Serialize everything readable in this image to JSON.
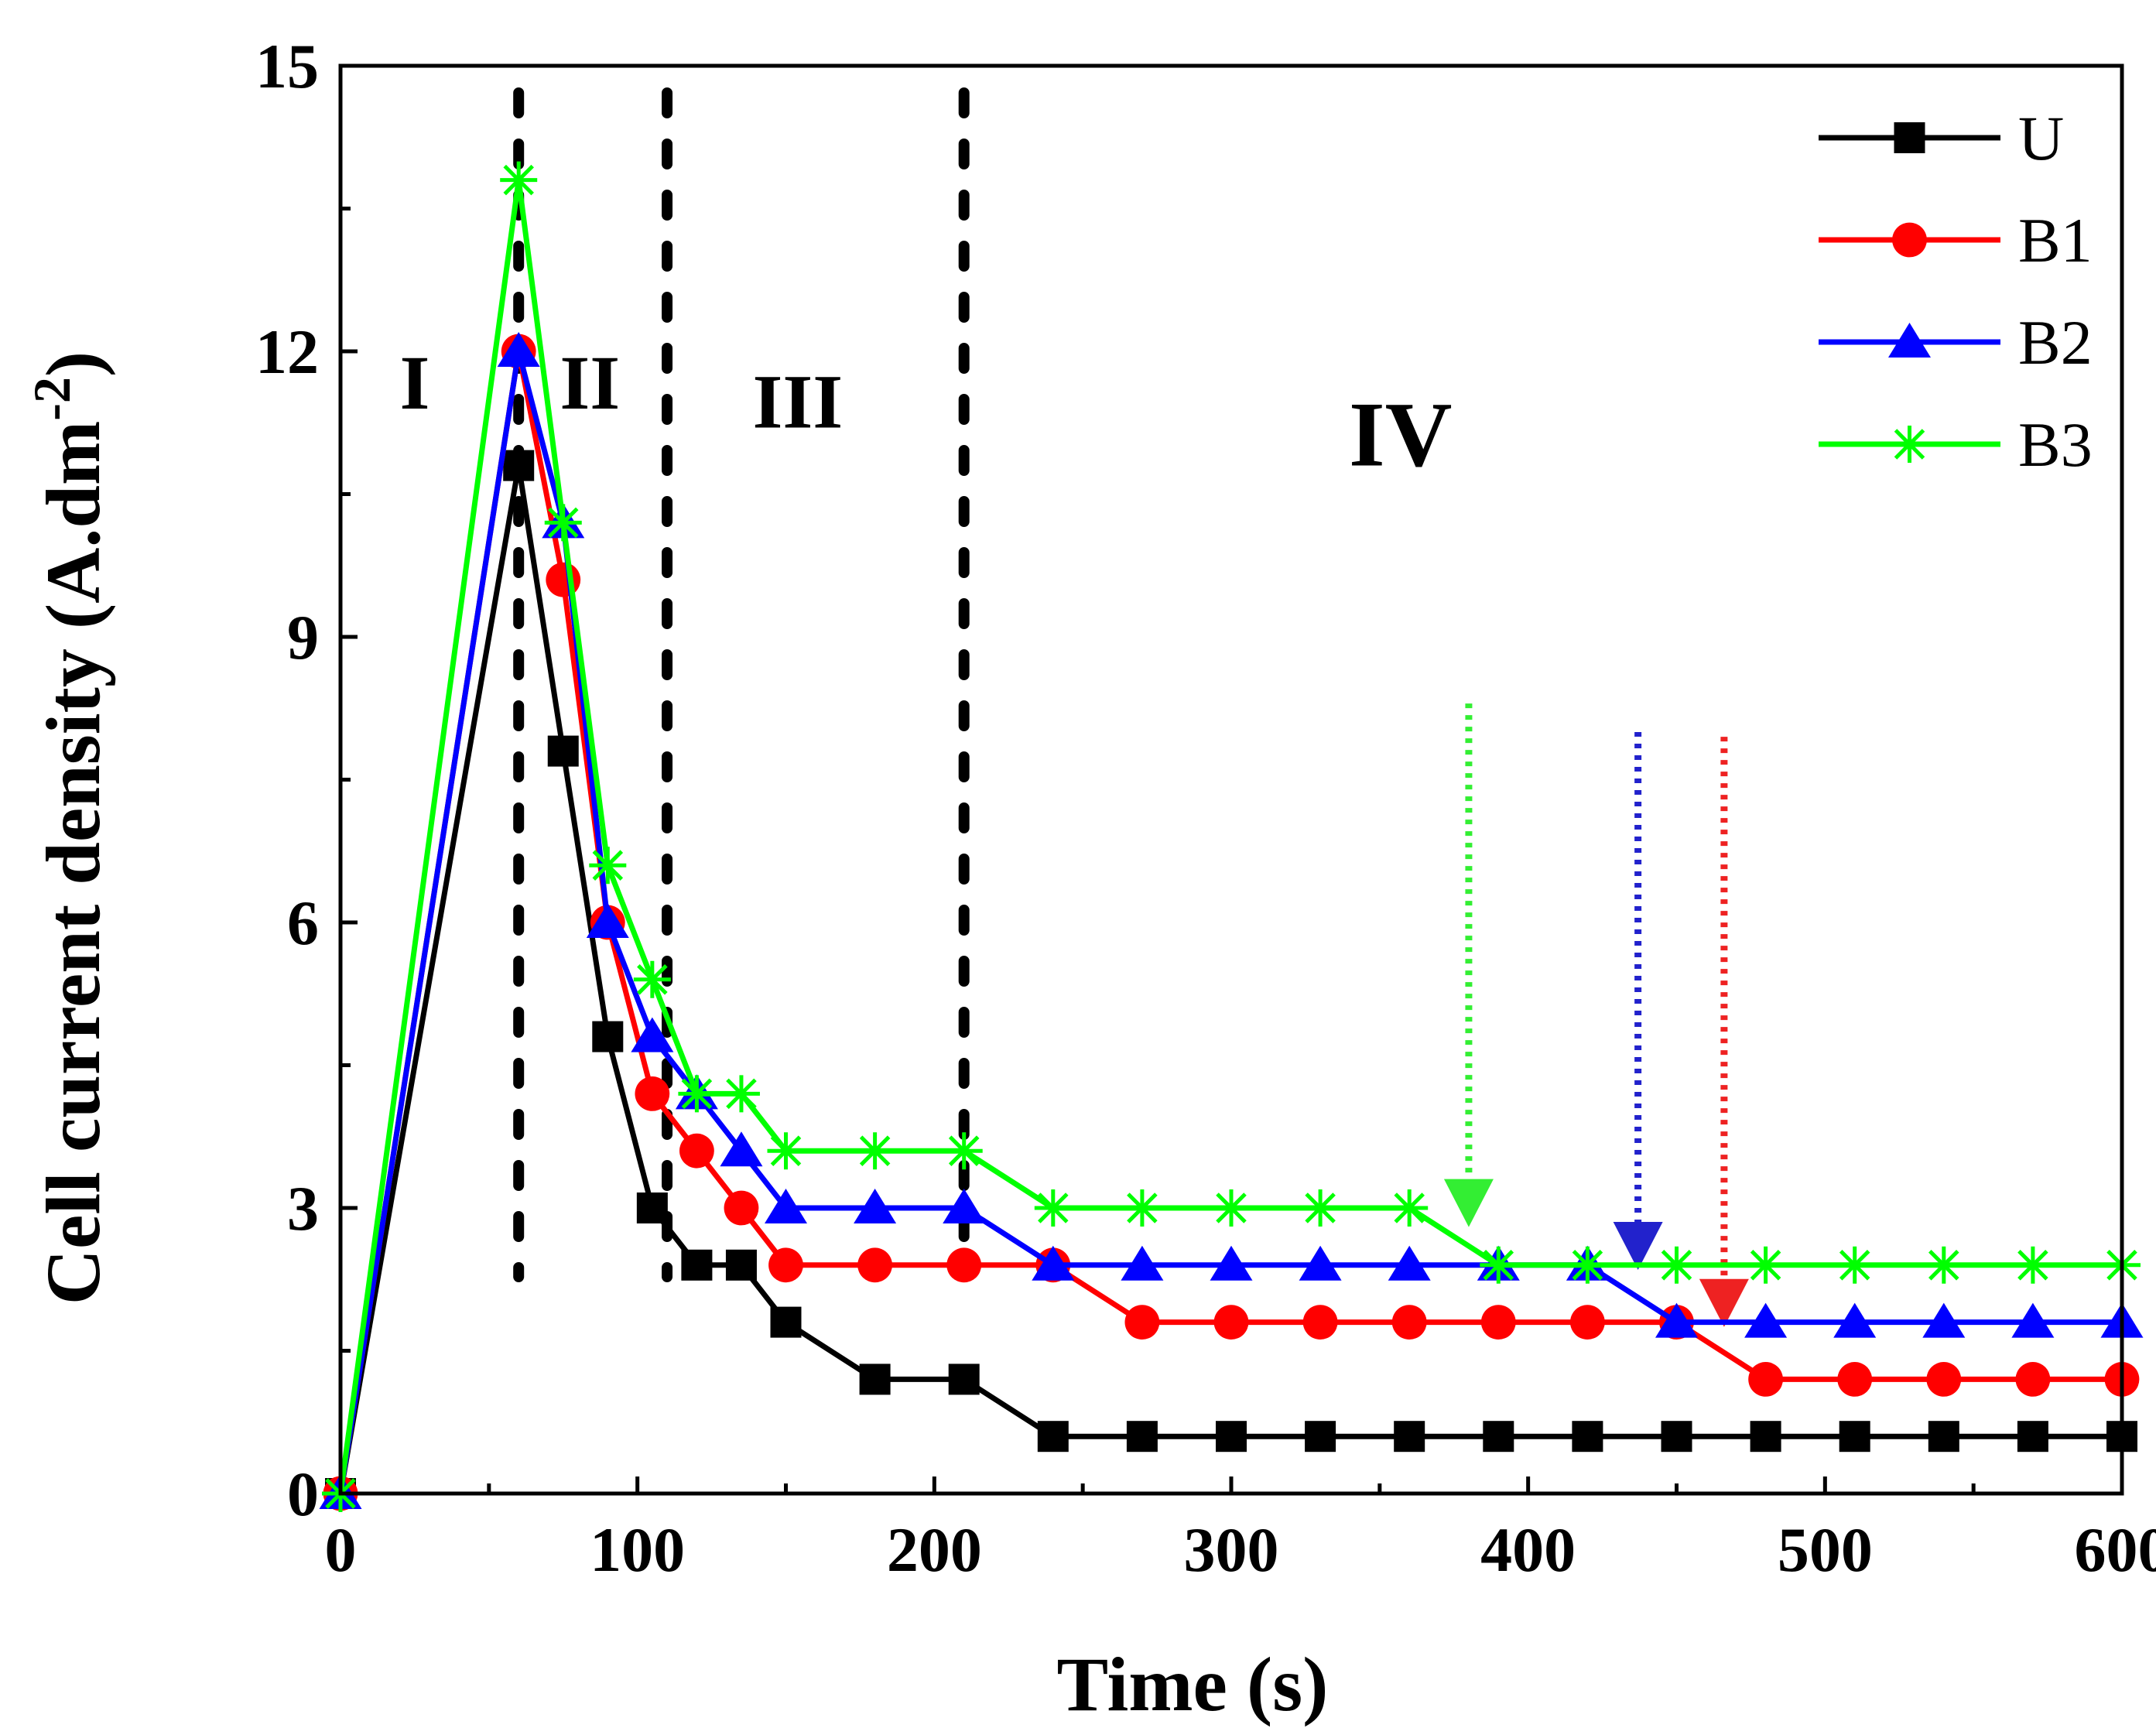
{
  "chart_data": {
    "type": "line",
    "title": "",
    "xlabel": "Time (s)",
    "ylabel_main": "Cell current density (A.dm",
    "ylabel_sup": "-2",
    "ylabel_close": ")",
    "xlim": [
      0,
      600
    ],
    "ylim": [
      0,
      15
    ],
    "xticks": [
      0,
      100,
      200,
      300,
      400,
      500,
      600
    ],
    "xtick_labels": [
      "0",
      "100",
      "200",
      "300",
      "400",
      "500",
      "600"
    ],
    "yticks": [
      0,
      3,
      6,
      9,
      12,
      15
    ],
    "ytick_labels": [
      "0",
      "3",
      "6",
      "9",
      "12",
      "15"
    ],
    "grid": false,
    "legend_position": "top-right",
    "series": [
      {
        "name": "U",
        "color": "#000000",
        "marker": "square",
        "x": [
          0,
          60,
          75,
          90,
          105,
          120,
          135,
          150,
          180,
          210,
          240,
          270,
          300,
          330,
          360,
          390,
          420,
          450,
          480,
          510,
          540,
          570,
          600
        ],
        "y": [
          0,
          10.8,
          7.8,
          4.8,
          3.0,
          2.4,
          2.4,
          1.8,
          1.2,
          1.2,
          0.6,
          0.6,
          0.6,
          0.6,
          0.6,
          0.6,
          0.6,
          0.6,
          0.6,
          0.6,
          0.6,
          0.6,
          0.6
        ]
      },
      {
        "name": "B1",
        "color": "#ff0000",
        "marker": "circle",
        "x": [
          0,
          60,
          75,
          90,
          105,
          120,
          135,
          150,
          180,
          210,
          240,
          270,
          300,
          330,
          360,
          390,
          420,
          450,
          480,
          510,
          540,
          570,
          600
        ],
        "y": [
          0,
          12.0,
          9.6,
          6.0,
          4.2,
          3.6,
          3.0,
          2.4,
          2.4,
          2.4,
          2.4,
          1.8,
          1.8,
          1.8,
          1.8,
          1.8,
          1.8,
          1.8,
          1.2,
          1.2,
          1.2,
          1.2,
          1.2
        ]
      },
      {
        "name": "B2",
        "color": "#0000ff",
        "marker": "triangle",
        "x": [
          0,
          60,
          75,
          90,
          105,
          120,
          135,
          150,
          180,
          210,
          240,
          270,
          300,
          330,
          360,
          390,
          420,
          450,
          480,
          510,
          540,
          570,
          600
        ],
        "y": [
          0,
          12.0,
          10.2,
          6.0,
          4.8,
          4.2,
          3.6,
          3.0,
          3.0,
          3.0,
          2.4,
          2.4,
          2.4,
          2.4,
          2.4,
          2.4,
          2.4,
          1.8,
          1.8,
          1.8,
          1.8,
          1.8,
          1.8
        ]
      },
      {
        "name": "B3",
        "color": "#00ff00",
        "marker": "asterisk",
        "x": [
          0,
          60,
          75,
          90,
          105,
          120,
          135,
          150,
          180,
          210,
          240,
          270,
          300,
          330,
          360,
          390,
          420,
          450,
          480,
          510,
          540,
          570,
          600
        ],
        "y": [
          0,
          13.8,
          10.2,
          6.6,
          5.4,
          4.2,
          4.2,
          3.6,
          3.6,
          3.6,
          3.0,
          3.0,
          3.0,
          3.0,
          3.0,
          2.4,
          2.4,
          2.4,
          2.4,
          2.4,
          2.4,
          2.4,
          2.4
        ]
      }
    ],
    "region_boundaries_x": [
      60,
      110,
      210
    ],
    "regions": [
      {
        "label": "I",
        "x": 25,
        "y": 11.4,
        "size": "medium"
      },
      {
        "label": "II",
        "x": 84,
        "y": 11.4,
        "size": "medium"
      },
      {
        "label": "III",
        "x": 154,
        "y": 11.2,
        "size": "medium"
      },
      {
        "label": "IV",
        "x": 357,
        "y": 10.8,
        "size": "large"
      }
    ],
    "annotations": [
      {
        "type": "arrow",
        "color": "#33ee33",
        "x": 380,
        "y_start": 8.3,
        "y_end": 2.8
      },
      {
        "type": "arrow",
        "color": "#2222cc",
        "x": 437,
        "y_start": 8.0,
        "y_end": 2.35
      },
      {
        "type": "arrow",
        "color": "#ee2222",
        "x": 466,
        "y_start": 7.95,
        "y_end": 1.75
      }
    ]
  }
}
